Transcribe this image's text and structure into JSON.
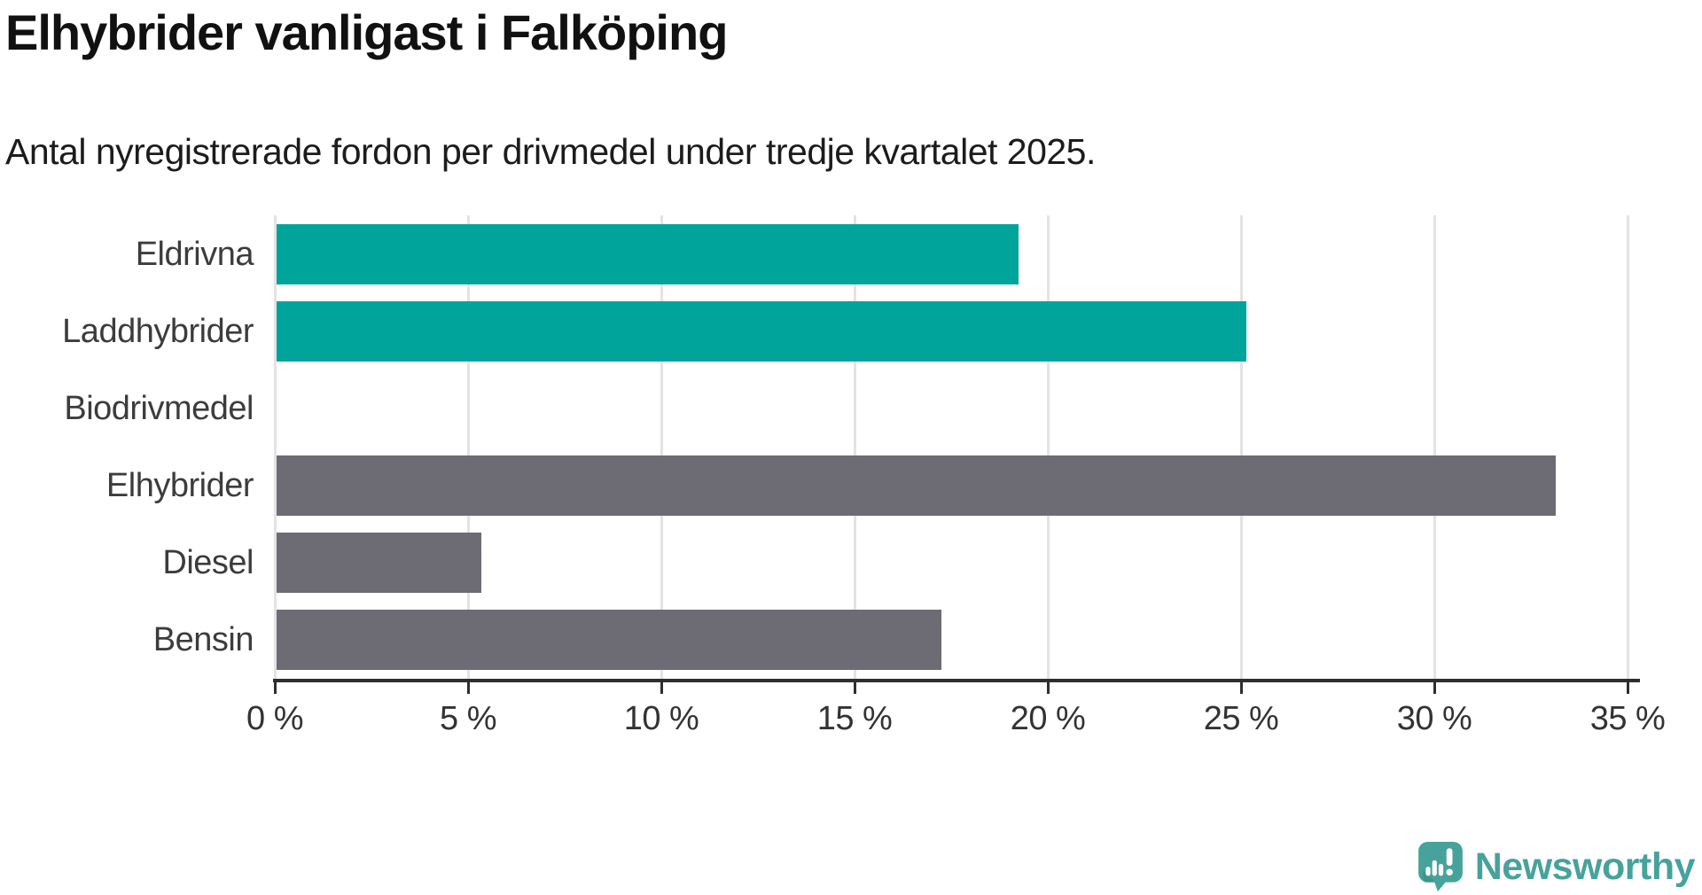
{
  "chart_data": {
    "type": "bar",
    "orientation": "horizontal",
    "title": "Elhybrider vanligast i Falköping",
    "subtitle": "Antal nyregistrerade fordon per drivmedel under tredje kvartalet 2025.",
    "categories": [
      "Eldrivna",
      "Laddhybrider",
      "Biodrivmedel",
      "Elhybrider",
      "Diesel",
      "Bensin"
    ],
    "values": [
      19.2,
      25.1,
      0,
      33.1,
      5.3,
      17.2
    ],
    "value_unit": "%",
    "bar_colors": [
      "#00A49B",
      "#00A49B",
      "#00A49B",
      "#6D6B73",
      "#6D6B73",
      "#6D6B73"
    ],
    "xlim": [
      0,
      35
    ],
    "x_ticks": [
      0,
      5,
      10,
      15,
      20,
      25,
      30,
      35
    ],
    "x_tick_labels": [
      "0 %",
      "5 %",
      "10 %",
      "15 %",
      "20 %",
      "25 %",
      "30 %",
      "35 %"
    ],
    "grid": true,
    "legend": false
  },
  "branding": {
    "logo_text": "Newsworthy",
    "logo_icon": "newsworthy-speech-bubble-bar-chart-icon"
  },
  "colors": {
    "teal_bar": "#00A49B",
    "gray_bar": "#6D6B73",
    "grid": "#E3E3E3",
    "axis": "#2E2E2E",
    "logo_teal": "#47A29B",
    "logo_teal_dark": "#3E948E"
  }
}
